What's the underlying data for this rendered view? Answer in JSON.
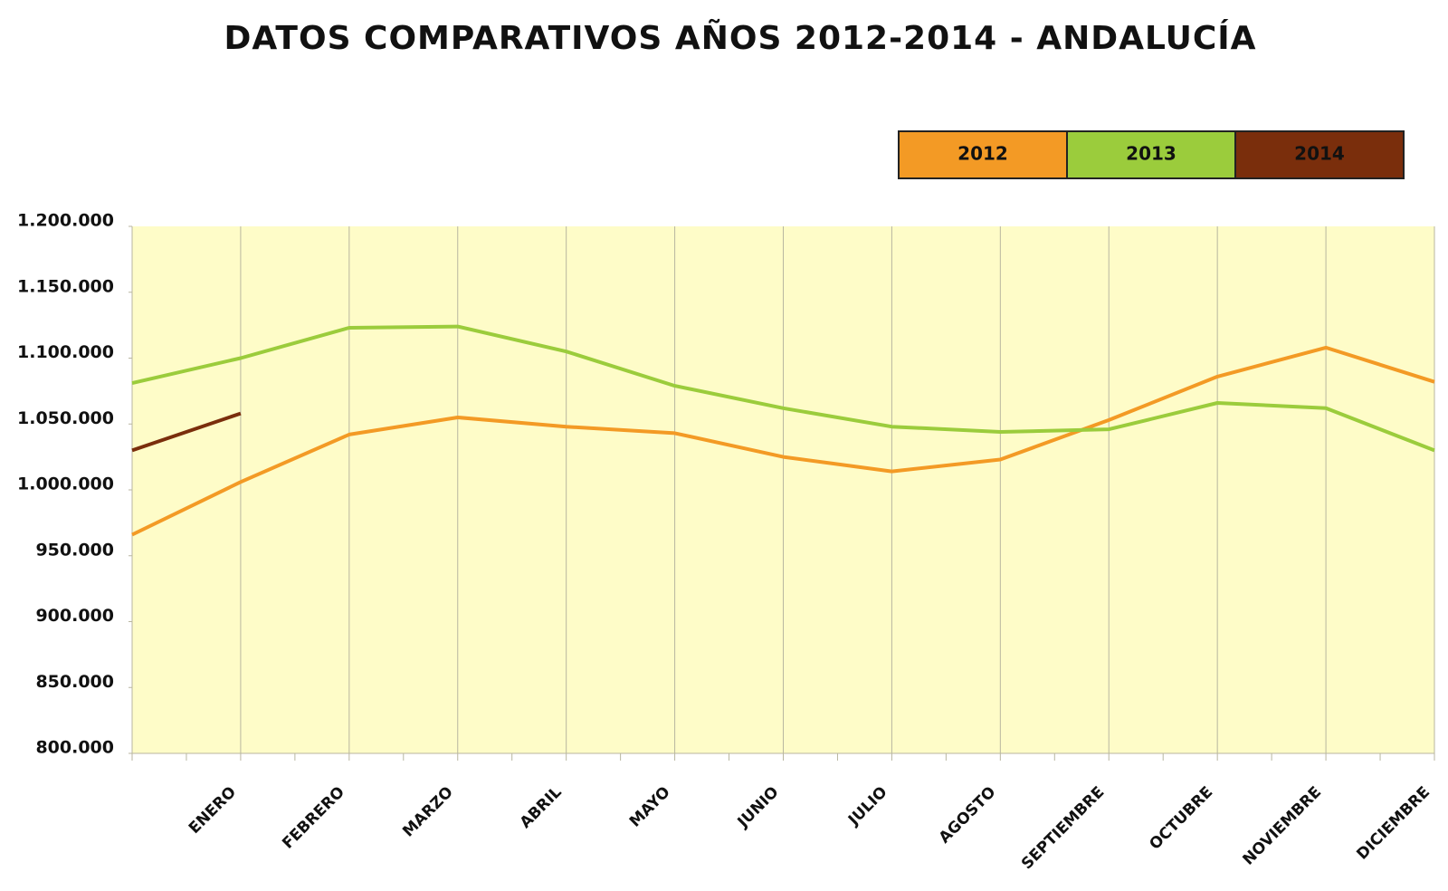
{
  "chart_data": {
    "type": "line",
    "title": "DATOS COMPARATIVOS AÑOS 2012-2014 - ANDALUCÍA",
    "categories": [
      null,
      "ENERO",
      "FEBRERO",
      "MARZO",
      "ABRIL",
      "MAYO",
      "JUNIO",
      "JULIO",
      "AGOSTO",
      "SEPTIEMBRE",
      "OCTUBRE",
      "NOVIEMBRE",
      "DICIEMBRE"
    ],
    "series": [
      {
        "name": "2012",
        "color": "#f39a25",
        "values": [
          966000,
          1006000,
          1042000,
          1055000,
          1048000,
          1043000,
          1025000,
          1014000,
          1023000,
          1053000,
          1086000,
          1108000,
          1082000
        ]
      },
      {
        "name": "2013",
        "color": "#9bcc3c",
        "values": [
          1081000,
          1100000,
          1123000,
          1124000,
          1105000,
          1079000,
          1062000,
          1048000,
          1044000,
          1046000,
          1066000,
          1062000,
          1030000
        ]
      },
      {
        "name": "2014",
        "color": "#7a2e0c",
        "values": [
          1030000,
          1058000,
          null,
          null,
          null,
          null,
          null,
          null,
          null,
          null,
          null,
          null,
          null
        ]
      }
    ],
    "ylim": [
      800000,
      1200000
    ],
    "yticks": [
      {
        "value": 800000,
        "label": "800.000"
      },
      {
        "value": 850000,
        "label": "850.000"
      },
      {
        "value": 900000,
        "label": "900.000"
      },
      {
        "value": 950000,
        "label": "950.000"
      },
      {
        "value": 1000000,
        "label": "1.000.000"
      },
      {
        "value": 1050000,
        "label": "1.050.000"
      },
      {
        "value": 1100000,
        "label": "1.100.000"
      },
      {
        "value": 1150000,
        "label": "1.150.000"
      },
      {
        "value": 1200000,
        "label": "1.200.000"
      }
    ],
    "grid": true,
    "legend": "top-right"
  }
}
